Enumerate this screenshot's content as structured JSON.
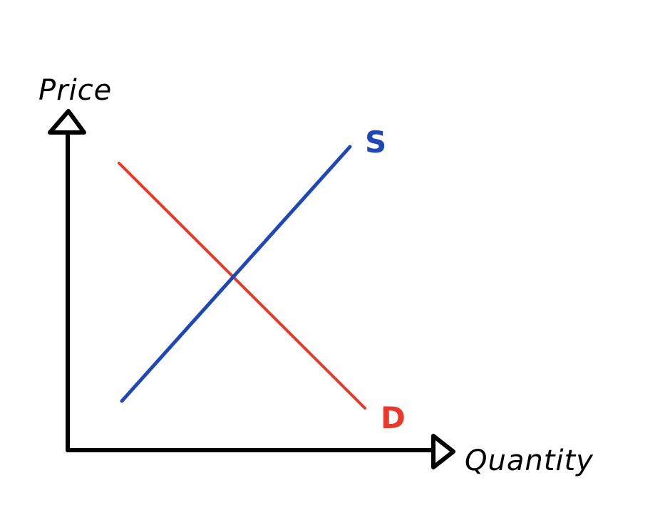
{
  "diagram": {
    "y_axis_label": "Price",
    "x_axis_label": "Quantity",
    "supply_label": "S",
    "demand_label": "D",
    "colors": {
      "axis": "#000000",
      "supply": "#1f47b8",
      "demand": "#e8392b"
    }
  }
}
